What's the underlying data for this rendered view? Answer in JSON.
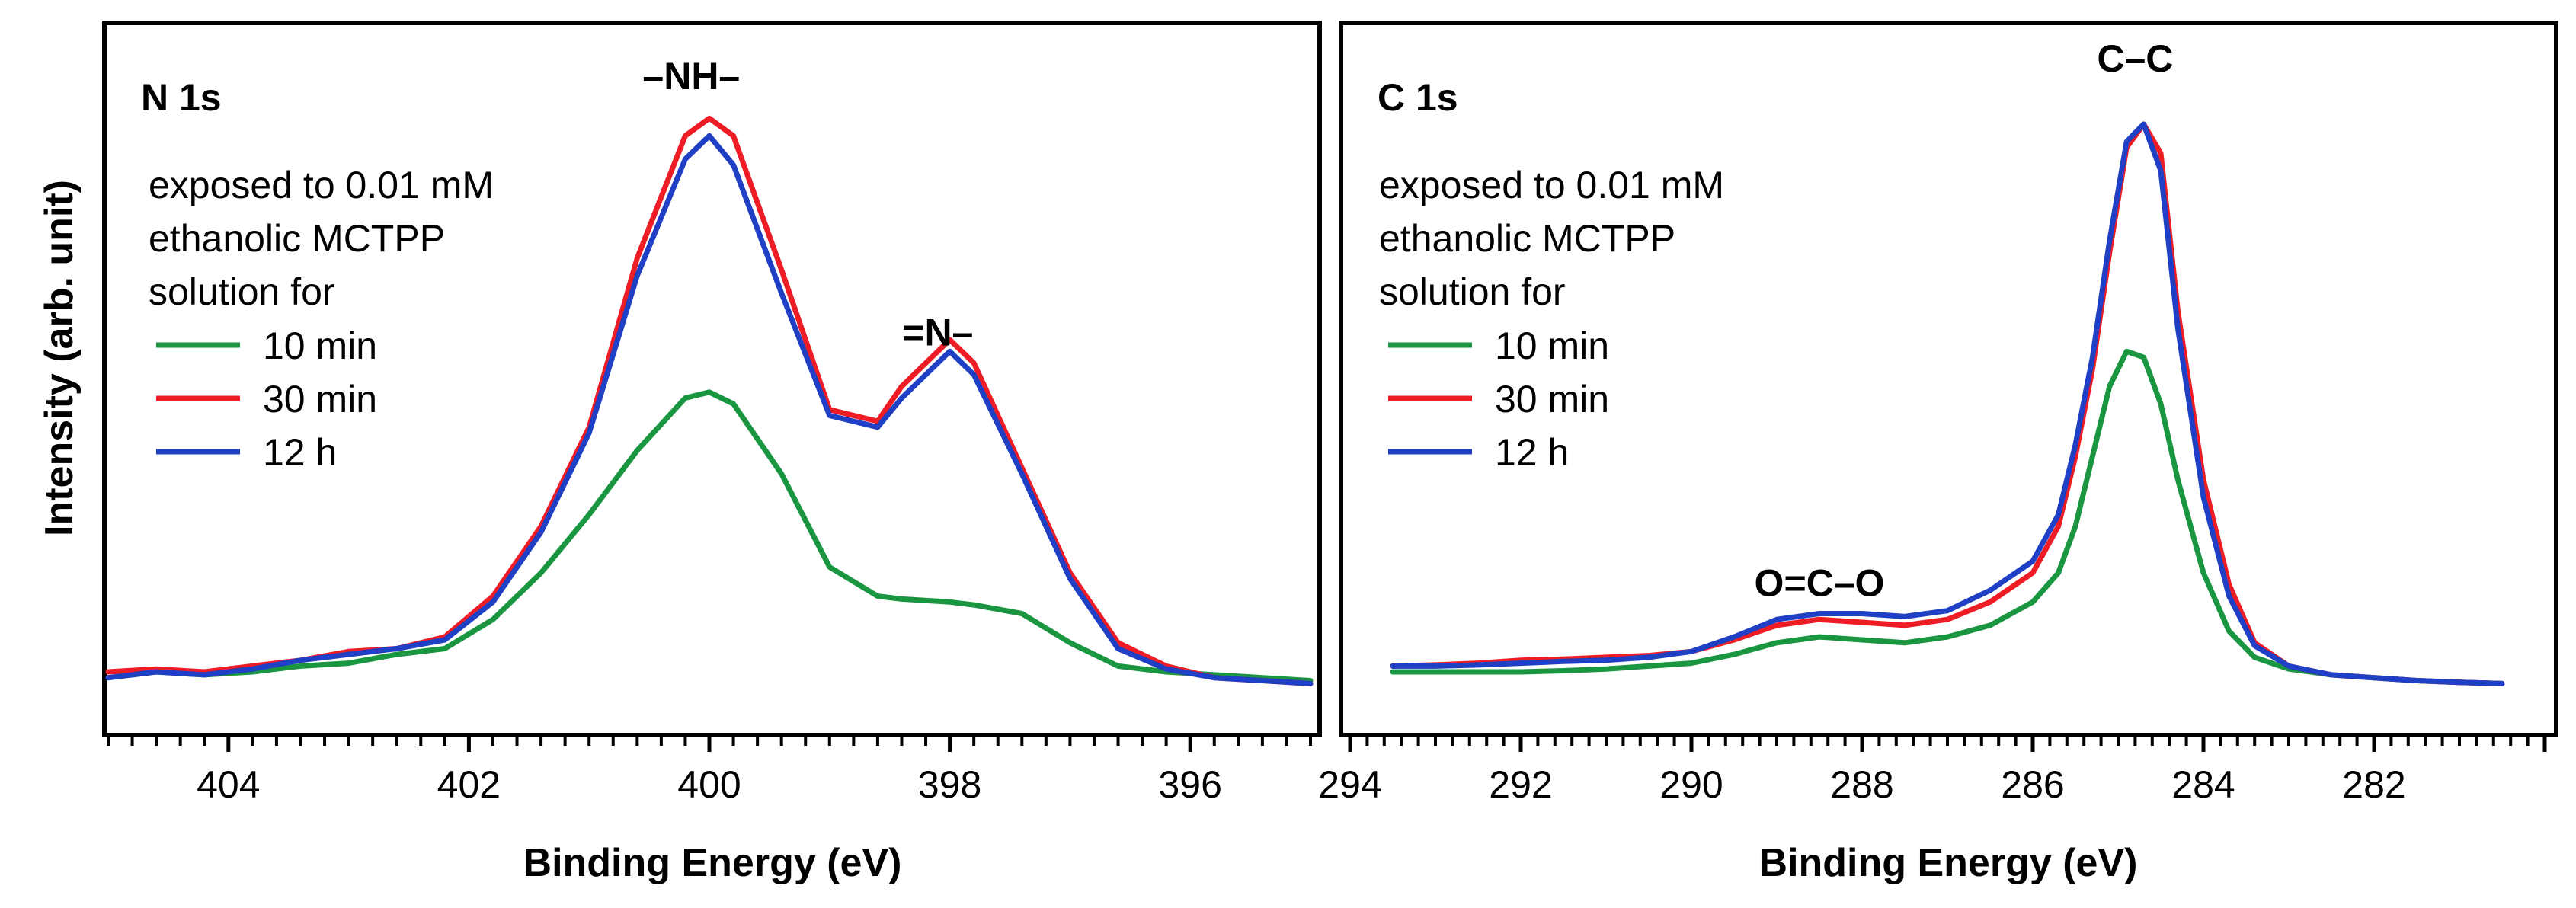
{
  "y_axis_label": "Intensity (arb. unit)",
  "series_colors": {
    "10 min": "#1a9641",
    "30 min": "#ee1c25",
    "12 h": "#1f3fc4"
  },
  "chart_data": [
    {
      "type": "line",
      "panel": "N 1s",
      "title": "N 1s",
      "xlabel": "Binding Energy (eV)",
      "ylabel": "Intensity (arb. unit)",
      "xlim": [
        405,
        395
      ],
      "ylim": [
        0,
        100
      ],
      "xticks": [
        404,
        402,
        400,
        398,
        396
      ],
      "annotations": [
        {
          "text": "–NH–",
          "x": 400.15,
          "y": 103
        },
        {
          "text": "=N–",
          "x": 398.1,
          "y": 59
        }
      ],
      "legend": {
        "heading": [
          "exposed to 0.01 mM",
          "ethanolic MCTPP",
          "solution for"
        ],
        "entries": [
          "10 min",
          "30 min",
          "12 h"
        ]
      },
      "x": [
        405.0,
        404.6,
        404.2,
        403.8,
        403.4,
        403.0,
        402.6,
        402.2,
        401.8,
        401.4,
        401.0,
        400.6,
        400.2,
        400.0,
        399.8,
        399.4,
        399.0,
        398.6,
        398.4,
        398.0,
        397.8,
        397.4,
        397.0,
        396.6,
        396.2,
        395.8,
        395.4,
        395.0
      ],
      "series": [
        {
          "name": "10 min",
          "values": [
            2,
            3,
            2.5,
            3,
            4,
            4.5,
            6,
            7,
            12,
            20,
            30,
            41,
            50,
            51,
            49,
            37,
            21,
            16,
            15.5,
            15,
            14.5,
            13,
            8,
            4,
            3,
            2.5,
            2,
            1.5
          ]
        },
        {
          "name": "30 min",
          "values": [
            3,
            3.5,
            3,
            4,
            5,
            6.5,
            7,
            9,
            16,
            28,
            45,
            74,
            95,
            98,
            95,
            72,
            48,
            46,
            52,
            60,
            56,
            38,
            20,
            8,
            4,
            2,
            1.5,
            1
          ]
        },
        {
          "name": "12 h",
          "values": [
            2,
            3,
            2.5,
            3.5,
            5,
            6,
            7,
            8.5,
            15,
            27,
            44,
            71,
            91,
            95,
            90,
            68,
            47,
            45,
            50,
            58,
            54,
            37,
            19,
            7,
            3.5,
            2,
            1.5,
            1
          ]
        }
      ]
    },
    {
      "type": "line",
      "panel": "C 1s",
      "title": "C 1s",
      "xlabel": "Binding Energy (eV)",
      "ylabel": "Intensity (arb. unit)",
      "xlim": [
        294,
        280
      ],
      "ylim": [
        0,
        100
      ],
      "xticks": [
        294,
        292,
        290,
        288,
        286,
        284,
        282
      ],
      "annotations": [
        {
          "text": "O=C–O",
          "x": 288.5,
          "y": 16
        },
        {
          "text": "C–C",
          "x": 284.8,
          "y": 106
        }
      ],
      "legend": {
        "heading": [
          "exposed to 0.01 mM",
          "ethanolic MCTPP",
          "solution for"
        ],
        "entries": [
          "10 min",
          "30 min",
          "12 h"
        ]
      },
      "x": [
        293.5,
        293.0,
        292.5,
        292.0,
        291.5,
        291.0,
        290.5,
        290.0,
        289.5,
        289.0,
        288.5,
        288.0,
        287.5,
        287.0,
        286.5,
        286.0,
        285.7,
        285.5,
        285.3,
        285.1,
        284.9,
        284.7,
        284.5,
        284.3,
        284.0,
        283.7,
        283.4,
        283.0,
        282.5,
        282.0,
        281.5,
        281.0,
        280.5
      ],
      "series": [
        {
          "name": "10 min",
          "values": [
            3,
            3,
            3,
            3,
            3.2,
            3.5,
            4,
            4.5,
            6,
            8,
            9,
            8.5,
            8,
            9,
            11,
            15,
            20,
            28,
            40,
            52,
            58,
            57,
            49,
            36,
            20,
            10,
            5.5,
            3.5,
            2.5,
            2,
            1.5,
            1.2,
            1
          ]
        },
        {
          "name": "30 min",
          "values": [
            4,
            4.2,
            4.5,
            5,
            5.2,
            5.5,
            5.8,
            6.5,
            8.5,
            11,
            12,
            11.5,
            11,
            12,
            15,
            20,
            28,
            40,
            55,
            75,
            93,
            97,
            92,
            65,
            36,
            18,
            8,
            4,
            2.5,
            2,
            1.5,
            1.2,
            1
          ]
        },
        {
          "name": "12 h",
          "values": [
            4,
            4,
            4.2,
            4.5,
            4.8,
            5,
            5.5,
            6.5,
            9,
            12,
            13,
            13,
            12.5,
            13.5,
            17,
            22,
            30,
            42,
            57,
            77,
            94,
            97,
            89,
            62,
            33,
            16,
            7.5,
            4,
            2.5,
            2,
            1.5,
            1.2,
            1
          ]
        }
      ]
    }
  ]
}
